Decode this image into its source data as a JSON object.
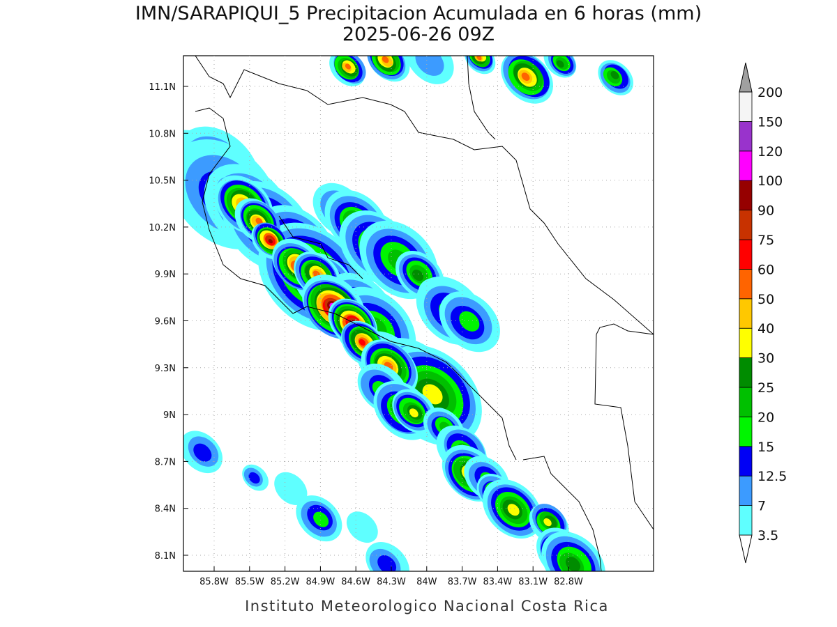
{
  "header": {
    "title": "IMN/SARAPIQUI_5 Precipitacion Acumulada en 6 horas (mm)",
    "subtitle": "2025-06-26 09Z"
  },
  "map": {
    "lon_ticks": [
      "85.8W",
      "85.5W",
      "85.2W",
      "84.9W",
      "84.6W",
      "84.3W",
      "84W",
      "83.7W",
      "83.4W",
      "83.1W",
      "82.8W"
    ],
    "lat_ticks": [
      "11.1N",
      "10.8N",
      "10.5N",
      "10.2N",
      "9.9N",
      "9.6N",
      "9.3N",
      "9N",
      "8.7N",
      "8.4N",
      "8.1N"
    ]
  },
  "colorbar": {
    "levels": [
      3.5,
      7,
      12.5,
      15,
      20,
      25,
      30,
      40,
      50,
      60,
      75,
      90,
      100,
      120,
      150,
      200
    ],
    "colors": [
      "#5fffff",
      "#3c9bff",
      "#0000f5",
      "#00f500",
      "#00c000",
      "#008c00",
      "#ffff00",
      "#ffc800",
      "#ff6400",
      "#ff0000",
      "#c83200",
      "#960000",
      "#ff00ff",
      "#9933cc",
      "#f5f5f5"
    ],
    "under_color": "#ffffff",
    "over_color": "#a0a0a0"
  },
  "footer": "Instituto Meteorologico Nacional Costa Rica"
}
